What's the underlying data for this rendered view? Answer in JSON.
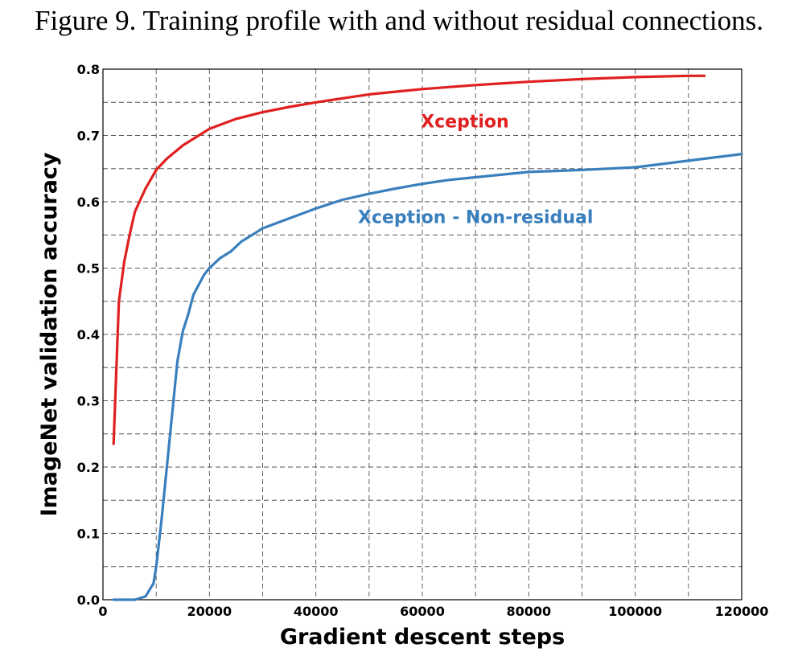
{
  "caption": "Figure 9. Training profile with and without residual connections.",
  "chart_data": {
    "type": "line",
    "title": "",
    "xlabel": "Gradient descent steps",
    "ylabel": "ImageNet validation accuracy",
    "xlim": [
      0,
      120000
    ],
    "ylim": [
      0.0,
      0.8
    ],
    "x_ticks": [
      0,
      20000,
      40000,
      60000,
      80000,
      100000,
      120000
    ],
    "y_ticks": [
      0.0,
      0.1,
      0.2,
      0.3,
      0.4,
      0.5,
      0.6,
      0.7,
      0.8
    ],
    "x_tick_labels": [
      "0",
      "20000",
      "40000",
      "60000",
      "80000",
      "100000",
      "120000"
    ],
    "y_tick_labels": [
      "0.0",
      "0.1",
      "0.2",
      "0.3",
      "0.4",
      "0.5",
      "0.6",
      "0.7",
      "0.8"
    ],
    "grid": true,
    "series": [
      {
        "name": "Xception",
        "color": "#e02020",
        "points": [
          [
            2000,
            0.235
          ],
          [
            3000,
            0.45
          ],
          [
            4000,
            0.51
          ],
          [
            5000,
            0.55
          ],
          [
            6000,
            0.585
          ],
          [
            8000,
            0.62
          ],
          [
            10000,
            0.648
          ],
          [
            12000,
            0.665
          ],
          [
            15000,
            0.685
          ],
          [
            18000,
            0.7
          ],
          [
            20000,
            0.71
          ],
          [
            25000,
            0.725
          ],
          [
            30000,
            0.735
          ],
          [
            35000,
            0.743
          ],
          [
            40000,
            0.75
          ],
          [
            45000,
            0.756
          ],
          [
            50000,
            0.762
          ],
          [
            60000,
            0.77
          ],
          [
            70000,
            0.776
          ],
          [
            80000,
            0.781
          ],
          [
            90000,
            0.785
          ],
          [
            100000,
            0.788
          ],
          [
            110000,
            0.79
          ],
          [
            113000,
            0.79
          ]
        ]
      },
      {
        "name": "Xception - Non-residual",
        "color": "#3a7fbd",
        "points": [
          [
            2000,
            0.0
          ],
          [
            4000,
            0.0
          ],
          [
            6000,
            0.0
          ],
          [
            8000,
            0.005
          ],
          [
            9500,
            0.025
          ],
          [
            10000,
            0.05
          ],
          [
            11000,
            0.12
          ],
          [
            12000,
            0.2
          ],
          [
            13000,
            0.28
          ],
          [
            14000,
            0.36
          ],
          [
            15000,
            0.405
          ],
          [
            16000,
            0.43
          ],
          [
            17000,
            0.46
          ],
          [
            18000,
            0.475
          ],
          [
            19000,
            0.49
          ],
          [
            20000,
            0.5
          ],
          [
            22000,
            0.515
          ],
          [
            24000,
            0.525
          ],
          [
            26000,
            0.54
          ],
          [
            28000,
            0.55
          ],
          [
            30000,
            0.56
          ],
          [
            35000,
            0.575
          ],
          [
            40000,
            0.59
          ],
          [
            45000,
            0.603
          ],
          [
            50000,
            0.612
          ],
          [
            55000,
            0.62
          ],
          [
            60000,
            0.627
          ],
          [
            65000,
            0.633
          ],
          [
            70000,
            0.637
          ],
          [
            80000,
            0.645
          ],
          [
            90000,
            0.648
          ],
          [
            100000,
            0.652
          ],
          [
            110000,
            0.662
          ],
          [
            120000,
            0.672
          ]
        ]
      }
    ],
    "annotations": [
      "Xception",
      "Xception - Non-residual"
    ]
  }
}
